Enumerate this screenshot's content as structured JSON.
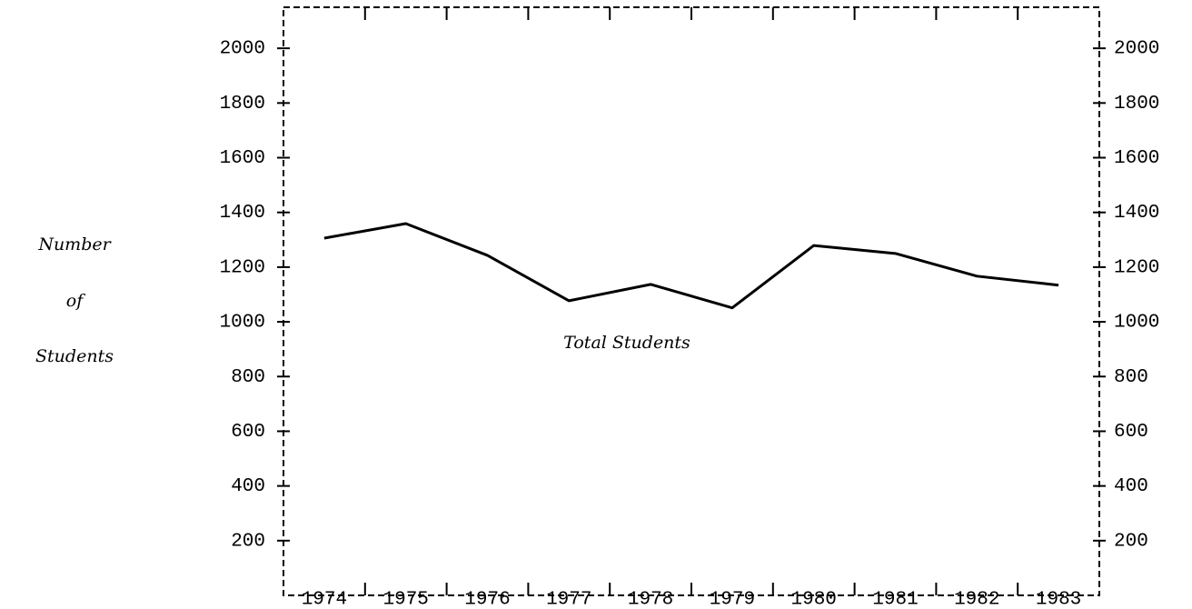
{
  "chart_data": {
    "type": "line",
    "categories": [
      "1974",
      "1975",
      "1976",
      "1977",
      "1978",
      "1979",
      "1980",
      "1981",
      "1982",
      "1983"
    ],
    "series": [
      {
        "name": "Total Students",
        "color": "#000000",
        "values": [
          1306,
          1359,
          1243,
          1077,
          1137,
          1051,
          1279,
          1250,
          1167,
          1134
        ]
      }
    ],
    "ylabel": [
      "Number",
      "of",
      "Students"
    ],
    "ylim": [
      0,
      2150
    ],
    "yticks": [
      200,
      400,
      600,
      800,
      1000,
      1200,
      1400,
      1600,
      1800,
      2000
    ],
    "y2lim": [
      0,
      2150
    ],
    "y2ticks": [
      200,
      400,
      600,
      800,
      1000,
      1200,
      1400,
      1600,
      1800,
      2000
    ],
    "grid": false
  }
}
